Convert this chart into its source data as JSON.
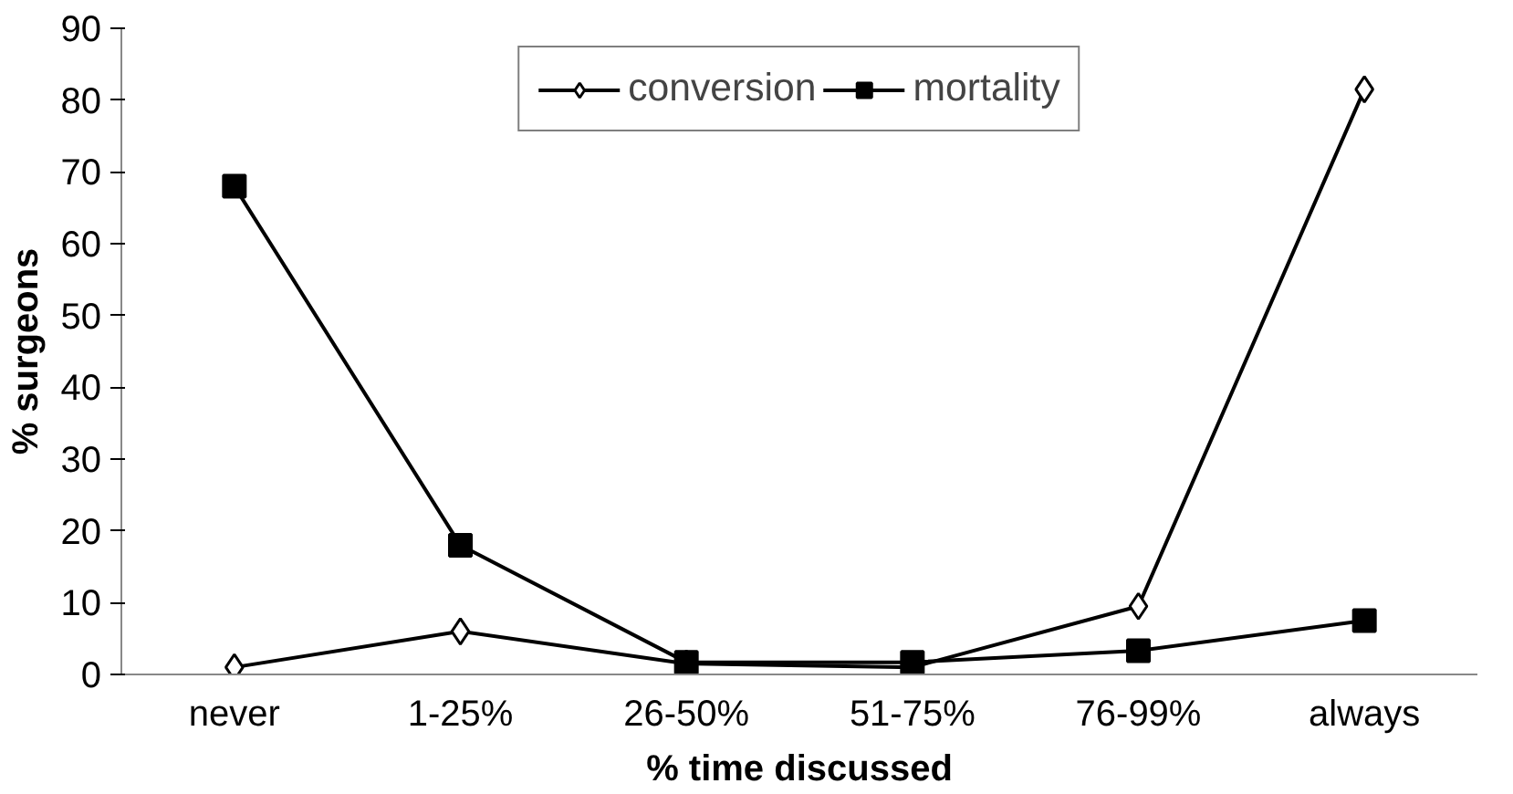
{
  "chart_data": {
    "type": "line",
    "xlabel": "% time discussed",
    "ylabel": "% surgeons",
    "categories": [
      "never",
      "1-25%",
      "26-50%",
      "51-75%",
      "76-99%",
      "always"
    ],
    "series": [
      {
        "name": "conversion",
        "color": "#000000",
        "marker": "diamond",
        "values": [
          1,
          6,
          1.5,
          1,
          9.5,
          81.5
        ]
      },
      {
        "name": "mortality",
        "color": "#000000",
        "marker": "square",
        "values": [
          68,
          18,
          1.7,
          1.7,
          3.3,
          7.5
        ]
      }
    ],
    "ylim": [
      0,
      90
    ],
    "yticks": [
      0,
      10,
      20,
      30,
      40,
      50,
      60,
      70,
      80,
      90
    ],
    "grid": false,
    "legend": "top",
    "line_style": "solid"
  }
}
